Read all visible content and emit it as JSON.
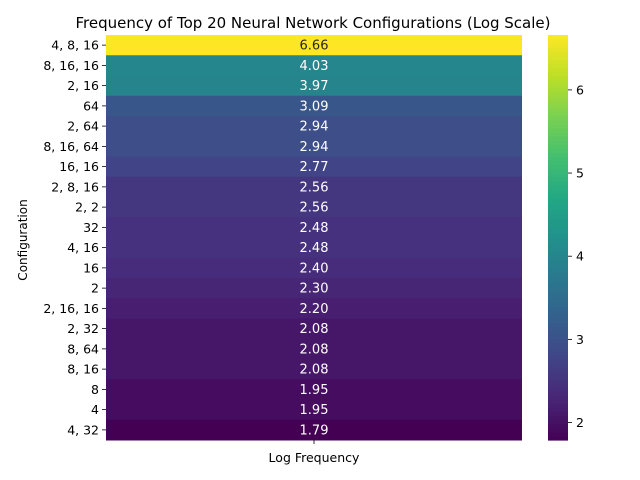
{
  "chart_data": {
    "type": "heatmap",
    "title": "Frequency of Top 20 Neural Network Configurations (Log Scale)",
    "ylabel": "Configuration",
    "xlabel": "",
    "column_labels": [
      "Log Frequency"
    ],
    "rows": [
      {
        "label": "4, 8, 16",
        "value": 6.66
      },
      {
        "label": "8, 16, 16",
        "value": 4.03
      },
      {
        "label": "2, 16",
        "value": 3.97
      },
      {
        "label": "64",
        "value": 3.09
      },
      {
        "label": "2, 64",
        "value": 2.94
      },
      {
        "label": "8, 16, 64",
        "value": 2.94
      },
      {
        "label": "16, 16",
        "value": 2.77
      },
      {
        "label": "2, 8, 16",
        "value": 2.56
      },
      {
        "label": "2, 2",
        "value": 2.56
      },
      {
        "label": "32",
        "value": 2.48
      },
      {
        "label": "4, 16",
        "value": 2.48
      },
      {
        "label": "16",
        "value": 2.4
      },
      {
        "label": "2",
        "value": 2.3
      },
      {
        "label": "2, 16, 16",
        "value": 2.2
      },
      {
        "label": "2, 32",
        "value": 2.08
      },
      {
        "label": "8, 64",
        "value": 2.08
      },
      {
        "label": "8, 16",
        "value": 2.08
      },
      {
        "label": "8",
        "value": 1.95
      },
      {
        "label": "4",
        "value": 1.95
      },
      {
        "label": "4, 32",
        "value": 1.79
      }
    ],
    "colormap": "viridis",
    "value_range": [
      1.79,
      6.66
    ],
    "colorbar_ticks": [
      2,
      3,
      4,
      5,
      6
    ],
    "grid": false,
    "legend": "colorbar-right"
  }
}
